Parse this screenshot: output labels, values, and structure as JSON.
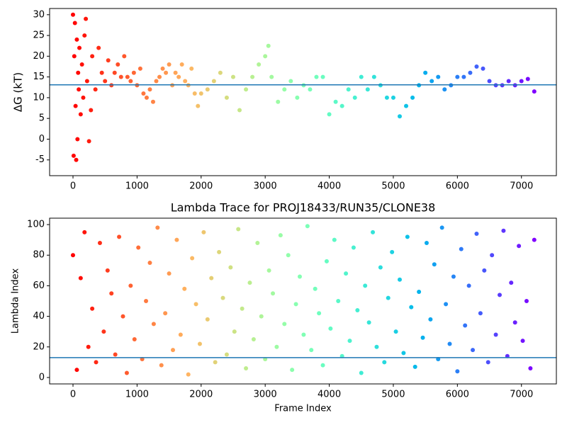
{
  "chart_data": [
    {
      "type": "scatter",
      "ylabel": "ΔG (kT)",
      "colormap": "rainbow_r",
      "hline": 13.1,
      "hline_color": "#1f77b4",
      "xlim": [
        -365,
        7545
      ],
      "xticks": [
        0,
        1000,
        2000,
        3000,
        4000,
        5000,
        6000,
        7000
      ],
      "ylim": [
        -8.8,
        31.5
      ],
      "yticks": [
        -5,
        0,
        5,
        10,
        15,
        20,
        25,
        30
      ],
      "x": [
        0,
        10,
        20,
        30,
        40,
        50,
        60,
        70,
        80,
        90,
        100,
        120,
        140,
        160,
        180,
        200,
        220,
        250,
        280,
        300,
        350,
        400,
        450,
        500,
        550,
        600,
        650,
        700,
        750,
        800,
        850,
        900,
        950,
        1000,
        1050,
        1100,
        1150,
        1200,
        1250,
        1300,
        1350,
        1400,
        1450,
        1500,
        1550,
        1600,
        1650,
        1700,
        1750,
        1800,
        1850,
        1900,
        1950,
        2000,
        2100,
        2200,
        2300,
        2400,
        2500,
        2600,
        2700,
        2800,
        2900,
        3000,
        3050,
        3100,
        3200,
        3300,
        3400,
        3500,
        3600,
        3700,
        3800,
        3900,
        4000,
        4100,
        4200,
        4300,
        4400,
        4500,
        4600,
        4700,
        4800,
        4900,
        5000,
        5100,
        5200,
        5300,
        5400,
        5500,
        5600,
        5700,
        5800,
        5900,
        6000,
        6100,
        6200,
        6300,
        6400,
        6500,
        6600,
        6700,
        6800,
        6900,
        7000,
        7100,
        7200
      ],
      "values": [
        30,
        -4,
        20,
        28,
        8,
        -5,
        24,
        0,
        16,
        12,
        22,
        6,
        18,
        10,
        25,
        29,
        14,
        -0.5,
        7,
        20,
        12,
        22,
        16,
        14,
        19,
        13,
        16,
        18,
        15,
        20,
        15,
        14,
        16,
        13,
        17,
        11,
        10,
        12,
        9,
        14,
        15,
        17,
        16,
        18,
        13,
        16,
        15,
        18,
        14,
        13,
        17,
        11,
        8,
        11,
        12,
        14,
        16,
        10,
        15,
        7,
        12,
        15,
        18,
        20,
        22.5,
        15,
        9,
        12,
        14,
        10,
        13,
        12,
        15,
        15,
        6,
        9,
        8,
        12,
        10,
        15,
        12,
        15,
        13,
        10,
        10,
        5.5,
        8,
        10,
        13,
        16,
        14,
        15,
        12,
        13,
        15,
        15,
        16,
        17.5,
        17,
        14,
        13,
        13,
        14,
        13,
        14,
        14.5,
        11.5
      ]
    },
    {
      "type": "scatter",
      "title": "Lambda Trace for PROJ18433/RUN35/CLONE38",
      "xlabel": "Frame Index",
      "ylabel": "Lambda Index",
      "colormap": "rainbow_r",
      "hline": 13,
      "hline_color": "#1f77b4",
      "xlim": [
        -365,
        7545
      ],
      "xticks": [
        0,
        1000,
        2000,
        3000,
        4000,
        5000,
        6000,
        7000
      ],
      "ylim": [
        -4.2,
        104.2
      ],
      "yticks": [
        0,
        20,
        40,
        60,
        80,
        100
      ],
      "x": [
        0,
        60,
        120,
        180,
        240,
        300,
        360,
        420,
        480,
        540,
        600,
        660,
        720,
        780,
        840,
        900,
        960,
        1020,
        1080,
        1140,
        1200,
        1260,
        1320,
        1380,
        1440,
        1500,
        1560,
        1620,
        1680,
        1740,
        1800,
        1860,
        1920,
        1980,
        2040,
        2100,
        2160,
        2220,
        2280,
        2340,
        2400,
        2460,
        2520,
        2580,
        2640,
        2700,
        2760,
        2820,
        2880,
        2940,
        3000,
        3060,
        3120,
        3180,
        3240,
        3300,
        3360,
        3420,
        3480,
        3540,
        3600,
        3660,
        3720,
        3780,
        3840,
        3900,
        3960,
        4020,
        4080,
        4140,
        4200,
        4260,
        4320,
        4380,
        4440,
        4500,
        4560,
        4620,
        4680,
        4740,
        4800,
        4860,
        4920,
        4980,
        5040,
        5100,
        5160,
        5220,
        5280,
        5340,
        5400,
        5460,
        5520,
        5580,
        5640,
        5700,
        5760,
        5820,
        5880,
        5940,
        6000,
        6060,
        6120,
        6180,
        6240,
        6300,
        6360,
        6420,
        6480,
        6540,
        6600,
        6660,
        6720,
        6780,
        6840,
        6900,
        6960,
        7020,
        7080,
        7140,
        7200
      ],
      "values": [
        80,
        5,
        65,
        95,
        20,
        45,
        10,
        88,
        30,
        70,
        55,
        15,
        92,
        40,
        3,
        60,
        25,
        85,
        12,
        50,
        75,
        35,
        98,
        8,
        42,
        68,
        18,
        90,
        28,
        58,
        2,
        78,
        48,
        22,
        95,
        38,
        65,
        10,
        82,
        52,
        15,
        72,
        30,
        97,
        45,
        6,
        62,
        25,
        88,
        40,
        12,
        70,
        55,
        20,
        93,
        35,
        80,
        5,
        48,
        66,
        28,
        99,
        18,
        58,
        42,
        8,
        76,
        32,
        90,
        50,
        14,
        68,
        24,
        85,
        44,
        3,
        60,
        36,
        95,
        20,
        72,
        10,
        52,
        82,
        30,
        64,
        16,
        92,
        46,
        7,
        56,
        26,
        88,
        38,
        74,
        12,
        98,
        48,
        22,
        66,
        4,
        84,
        34,
        60,
        18,
        94,
        42,
        70,
        10,
        80,
        28,
        54,
        96,
        14,
        62,
        36,
        86,
        24,
        50,
        6,
        90
      ]
    }
  ]
}
